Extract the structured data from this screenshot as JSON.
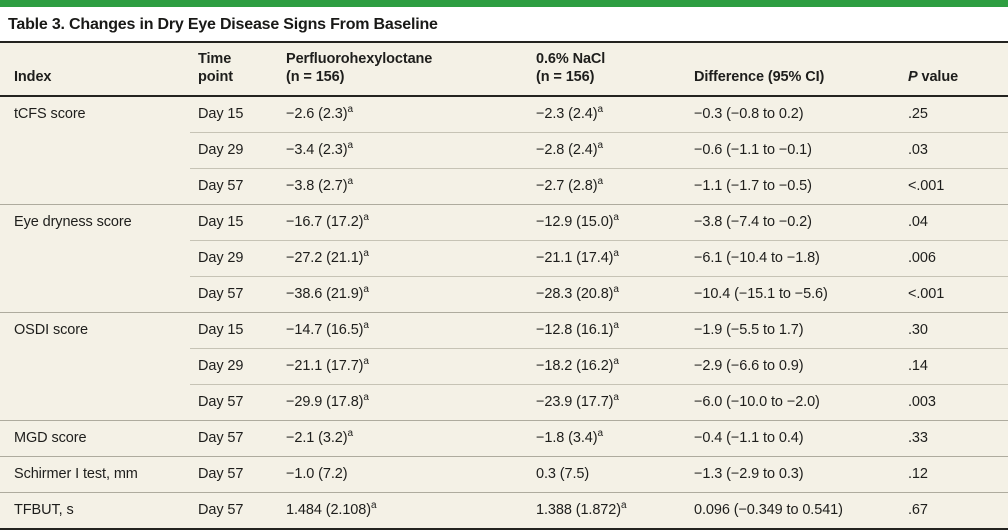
{
  "colors": {
    "accent_green": "#2e9e41",
    "table_background": "#f4f1e6",
    "rule_dark": "#23231f",
    "rule_light": "#c6c3b5",
    "text": "#1e1e1c"
  },
  "title": "Table 3. Changes in Dry Eye Disease Signs From Baseline",
  "table": {
    "headers": {
      "index": "Index",
      "time_point": "Time point",
      "drug_name": "Perfluorohexyloctane",
      "drug_n": "(n = 156)",
      "control_name": "0.6% NaCl",
      "control_n": "(n = 156)",
      "difference": "Difference (95% CI)",
      "p_italic": "P",
      "p_rest": " value"
    },
    "footnote_marker": "a",
    "rows": [
      {
        "index": "tCFS score",
        "time": "Day 15",
        "drug": "−2.6 (2.3)",
        "drug_sup": "a",
        "control": "−2.3 (2.4)",
        "control_sup": "a",
        "difference": "−0.3 (−0.8 to 0.2)",
        "p": ".25",
        "group_start": true
      },
      {
        "index": "",
        "time": "Day 29",
        "drug": "−3.4 (2.3)",
        "drug_sup": "a",
        "control": "−2.8 (2.4)",
        "control_sup": "a",
        "difference": "−0.6 (−1.1 to −0.1)",
        "p": ".03",
        "group_start": false
      },
      {
        "index": "",
        "time": "Day 57",
        "drug": "−3.8 (2.7)",
        "drug_sup": "a",
        "control": "−2.7 (2.8)",
        "control_sup": "a",
        "difference": "−1.1 (−1.7 to −0.5)",
        "p": "<.001",
        "group_start": false
      },
      {
        "index": "Eye dryness score",
        "time": "Day 15",
        "drug": "−16.7 (17.2)",
        "drug_sup": "a",
        "control": "−12.9 (15.0)",
        "control_sup": "a",
        "difference": "−3.8 (−7.4 to −0.2)",
        "p": ".04",
        "group_start": true
      },
      {
        "index": "",
        "time": "Day 29",
        "drug": "−27.2 (21.1)",
        "drug_sup": "a",
        "control": "−21.1 (17.4)",
        "control_sup": "a",
        "difference": "−6.1 (−10.4 to −1.8)",
        "p": ".006",
        "group_start": false
      },
      {
        "index": "",
        "time": "Day 57",
        "drug": "−38.6 (21.9)",
        "drug_sup": "a",
        "control": "−28.3 (20.8)",
        "control_sup": "a",
        "difference": "−10.4 (−15.1 to −5.6)",
        "p": "<.001",
        "group_start": false
      },
      {
        "index": "OSDI score",
        "time": "Day 15",
        "drug": "−14.7 (16.5)",
        "drug_sup": "a",
        "control": "−12.8 (16.1)",
        "control_sup": "a",
        "difference": "−1.9 (−5.5 to 1.7)",
        "p": ".30",
        "group_start": true
      },
      {
        "index": "",
        "time": "Day 29",
        "drug": "−21.1 (17.7)",
        "drug_sup": "a",
        "control": "−18.2 (16.2)",
        "control_sup": "a",
        "difference": "−2.9 (−6.6 to 0.9)",
        "p": ".14",
        "group_start": false
      },
      {
        "index": "",
        "time": "Day 57",
        "drug": "−29.9 (17.8)",
        "drug_sup": "a",
        "control": "−23.9 (17.7)",
        "control_sup": "a",
        "difference": "−6.0 (−10.0 to −2.0)",
        "p": ".003",
        "group_start": false
      },
      {
        "index": "MGD score",
        "time": "Day 57",
        "drug": "−2.1 (3.2)",
        "drug_sup": "a",
        "control": "−1.8 (3.4)",
        "control_sup": "a",
        "difference": "−0.4 (−1.1 to 0.4)",
        "p": ".33",
        "group_start": true
      },
      {
        "index": "Schirmer I test, mm",
        "time": "Day 57",
        "drug": "−1.0 (7.2)",
        "drug_sup": "",
        "control": "0.3 (7.5)",
        "control_sup": "",
        "difference": "−1.3 (−2.9 to 0.3)",
        "p": ".12",
        "group_start": true
      },
      {
        "index": "TFBUT, s",
        "time": "Day 57",
        "drug": "1.484 (2.108)",
        "drug_sup": "a",
        "control": "1.388 (1.872)",
        "control_sup": "a",
        "difference": "0.096 (−0.349 to 0.541)",
        "p": ".67",
        "group_start": true
      }
    ]
  }
}
